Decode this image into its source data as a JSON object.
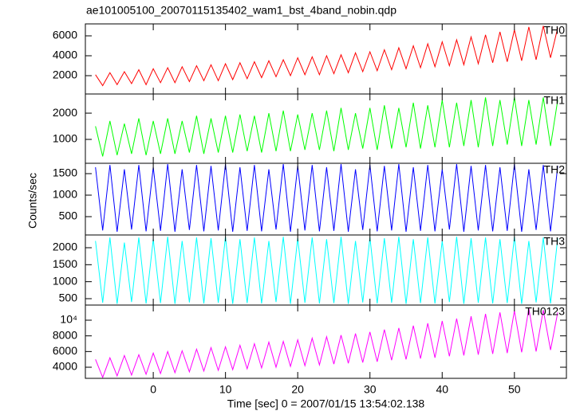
{
  "chart_data": [
    {
      "type": "line",
      "title": "ae101005100_20070115135402_wam1_bst_4band_nobin.qdp",
      "x": [
        -8,
        -7,
        -6,
        -5,
        -4,
        -3,
        -2,
        -1,
        0,
        1,
        2,
        3,
        4,
        5,
        6,
        7,
        8,
        9,
        10,
        11,
        12,
        13,
        14,
        15,
        16,
        17,
        18,
        19,
        20,
        21,
        22,
        23,
        24,
        25,
        26,
        27,
        28,
        29,
        30,
        31,
        32,
        33,
        34,
        35,
        36,
        37,
        38,
        39,
        40,
        41,
        42,
        43,
        44,
        45,
        46,
        47,
        48,
        49,
        50,
        51,
        52,
        53,
        54,
        55,
        56
      ],
      "xlim": [
        -9.4,
        57.2
      ],
      "ylim": [
        160,
        7200
      ],
      "yticks": [
        2000,
        4000,
        6000
      ],
      "series": [
        {
          "name": "TH0",
          "color": "#ff0000",
          "values": [
            2100,
            1000,
            2300,
            1100,
            2400,
            1200,
            2600,
            1100,
            2700,
            1300,
            2800,
            1300,
            2900,
            1400,
            3000,
            1500,
            3100,
            1500,
            3200,
            1600,
            3300,
            1700,
            3400,
            1800,
            3500,
            1900,
            3600,
            2000,
            3800,
            2100,
            3900,
            2100,
            4000,
            2200,
            4100,
            2300,
            4300,
            2400,
            4400,
            2500,
            4600,
            2600,
            4800,
            2700,
            5000,
            2800,
            5200,
            2900,
            5400,
            3000,
            5600,
            3100,
            5900,
            3200,
            6100,
            3300,
            6400,
            3400,
            6600,
            3500,
            6900,
            3600,
            7000,
            3800,
            6800
          ]
        }
      ]
    },
    {
      "type": "line",
      "x": [
        -8,
        -7,
        -6,
        -5,
        -4,
        -3,
        -2,
        -1,
        0,
        1,
        2,
        3,
        4,
        5,
        6,
        7,
        8,
        9,
        10,
        11,
        12,
        13,
        14,
        15,
        16,
        17,
        18,
        19,
        20,
        21,
        22,
        23,
        24,
        25,
        26,
        27,
        28,
        29,
        30,
        31,
        32,
        33,
        34,
        35,
        36,
        37,
        38,
        39,
        40,
        41,
        42,
        43,
        44,
        45,
        46,
        47,
        48,
        49,
        50,
        51,
        52,
        53,
        54,
        55,
        56
      ],
      "xlim": [
        -9.4,
        57.2
      ],
      "ylim": [
        90,
        2730
      ],
      "yticks": [
        1000,
        2000
      ],
      "series": [
        {
          "name": "TH1",
          "color": "#00ff00",
          "values": [
            1500,
            350,
            1700,
            400,
            1600,
            450,
            1800,
            400,
            1700,
            450,
            1800,
            450,
            1700,
            500,
            1900,
            450,
            1800,
            500,
            1900,
            500,
            1950,
            550,
            1900,
            500,
            2000,
            550,
            2100,
            550,
            1950,
            600,
            2000,
            600,
            2100,
            550,
            2200,
            600,
            2000,
            650,
            2200,
            600,
            2300,
            650,
            2200,
            700,
            2400,
            650,
            2300,
            700,
            2500,
            700,
            2400,
            750,
            2500,
            700,
            2600,
            750,
            2500,
            800,
            2600,
            750,
            2500,
            800,
            2600,
            750,
            2500
          ]
        }
      ]
    },
    {
      "type": "line",
      "x": [
        -8,
        -7,
        -6,
        -5,
        -4,
        -3,
        -2,
        -1,
        0,
        1,
        2,
        3,
        4,
        5,
        6,
        7,
        8,
        9,
        10,
        11,
        12,
        13,
        14,
        15,
        16,
        17,
        18,
        19,
        20,
        21,
        22,
        23,
        24,
        25,
        26,
        27,
        28,
        29,
        30,
        31,
        32,
        33,
        34,
        35,
        36,
        37,
        38,
        39,
        40,
        41,
        42,
        43,
        44,
        45,
        46,
        47,
        48,
        49,
        50,
        51,
        52,
        53,
        54,
        55,
        56
      ],
      "xlim": [
        -9.4,
        57.2
      ],
      "ylim": [
        74,
        1741
      ],
      "yticks": [
        500,
        1000,
        1500
      ],
      "series": [
        {
          "name": "TH2",
          "color": "#0000ff",
          "values": [
            1650,
            180,
            1700,
            150,
            1600,
            200,
            1700,
            160,
            1650,
            170,
            1720,
            150,
            1600,
            190,
            1700,
            160,
            1680,
            180,
            1720,
            150,
            1650,
            170,
            1700,
            160,
            1600,
            200,
            1720,
            150,
            1680,
            180,
            1700,
            160,
            1650,
            170,
            1720,
            150,
            1600,
            190,
            1700,
            160,
            1680,
            180,
            1720,
            150,
            1650,
            170,
            1700,
            160,
            1600,
            200,
            1720,
            150,
            1680,
            180,
            1700,
            160,
            1650,
            170,
            1720,
            150,
            1600,
            190,
            1700,
            160,
            1680
          ]
        }
      ]
    },
    {
      "type": "line",
      "x": [
        -8,
        -7,
        -6,
        -5,
        -4,
        -3,
        -2,
        -1,
        0,
        1,
        2,
        3,
        4,
        5,
        6,
        7,
        8,
        9,
        10,
        11,
        12,
        13,
        14,
        15,
        16,
        17,
        18,
        19,
        20,
        21,
        22,
        23,
        24,
        25,
        26,
        27,
        28,
        29,
        30,
        31,
        32,
        33,
        34,
        35,
        36,
        37,
        38,
        39,
        40,
        41,
        42,
        43,
        44,
        45,
        46,
        47,
        48,
        49,
        50,
        51,
        52,
        53,
        54,
        55,
        56
      ],
      "xlim": [
        -9.4,
        57.2
      ],
      "ylim": [
        312,
        2375
      ],
      "yticks": [
        500,
        1000,
        1500,
        2000
      ],
      "series": [
        {
          "name": "TH3",
          "color": "#00ffff",
          "values": [
            2200,
            380,
            2300,
            350,
            2150,
            400,
            2300,
            360,
            2250,
            370,
            2320,
            350,
            2200,
            390,
            2300,
            360,
            2280,
            380,
            2320,
            350,
            2250,
            370,
            2300,
            360,
            2200,
            400,
            2320,
            350,
            2280,
            380,
            2300,
            360,
            2250,
            370,
            2320,
            350,
            2200,
            390,
            2300,
            360,
            2280,
            380,
            2320,
            350,
            2250,
            370,
            2300,
            360,
            2200,
            400,
            2320,
            350,
            2280,
            380,
            2300,
            360,
            2250,
            370,
            2320,
            350,
            2200,
            390,
            2300,
            360,
            2280
          ]
        }
      ]
    },
    {
      "type": "line",
      "x": [
        -8,
        -7,
        -6,
        -5,
        -4,
        -3,
        -2,
        -1,
        0,
        1,
        2,
        3,
        4,
        5,
        6,
        7,
        8,
        9,
        10,
        11,
        12,
        13,
        14,
        15,
        16,
        17,
        18,
        19,
        20,
        21,
        22,
        23,
        24,
        25,
        26,
        27,
        28,
        29,
        30,
        31,
        32,
        33,
        34,
        35,
        36,
        37,
        38,
        39,
        40,
        41,
        42,
        43,
        44,
        45,
        46,
        47,
        48,
        49,
        50,
        51,
        52,
        53,
        54,
        55,
        56
      ],
      "xlim": [
        -9.4,
        57.2
      ],
      "ylim": [
        2580,
        11930
      ],
      "yticks": [
        4000,
        6000,
        8000,
        {
          "value": 10000,
          "label": "10⁴"
        }
      ],
      "xticks": [
        0,
        10,
        20,
        30,
        40,
        50
      ],
      "xlabel": "Time [sec] 0 = 2007/01/15 13:54:02.138",
      "ylabel": "Counts/sec",
      "series": [
        {
          "name": "TH0123",
          "color": "#ff00ff",
          "values": [
            5000,
            2700,
            5200,
            2900,
            5500,
            3000,
            5600,
            3100,
            5800,
            3200,
            6000,
            3300,
            6100,
            3400,
            6300,
            3500,
            6500,
            3600,
            6600,
            3700,
            6800,
            3800,
            7000,
            3900,
            7200,
            4000,
            7300,
            4100,
            7500,
            4200,
            7700,
            4300,
            7900,
            4400,
            8100,
            4500,
            8300,
            4600,
            8500,
            4700,
            8800,
            4900,
            9000,
            5000,
            9300,
            5100,
            9600,
            5200,
            9900,
            5400,
            10200,
            5500,
            10500,
            5600,
            10800,
            5700,
            11000,
            5800,
            11200,
            5900,
            11500,
            6000,
            11300,
            6200,
            11000
          ]
        }
      ]
    }
  ]
}
